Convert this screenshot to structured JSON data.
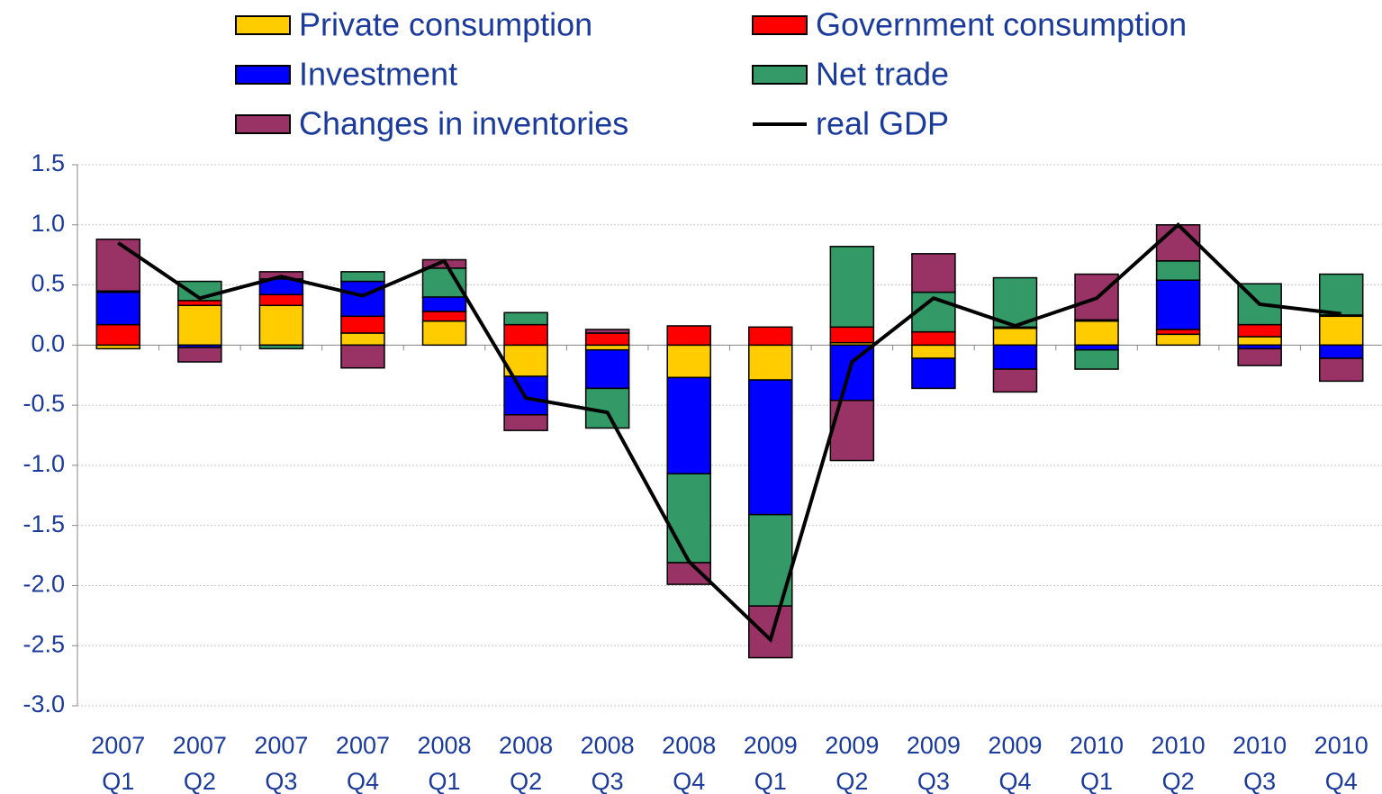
{
  "chart_data": {
    "type": "bar",
    "stacked": true,
    "categories": [
      [
        "2007",
        "Q1"
      ],
      [
        "2007",
        "Q2"
      ],
      [
        "2007",
        "Q3"
      ],
      [
        "2007",
        "Q4"
      ],
      [
        "2008",
        "Q1"
      ],
      [
        "2008",
        "Q2"
      ],
      [
        "2008",
        "Q3"
      ],
      [
        "2008",
        "Q4"
      ],
      [
        "2009",
        "Q1"
      ],
      [
        "2009",
        "Q2"
      ],
      [
        "2009",
        "Q3"
      ],
      [
        "2009",
        "Q4"
      ],
      [
        "2010",
        "Q1"
      ],
      [
        "2010",
        "Q2"
      ],
      [
        "2010",
        "Q3"
      ],
      [
        "2010",
        "Q4"
      ]
    ],
    "series": [
      {
        "name": "Private consumption",
        "color": "#ffcc00",
        "values": [
          -0.03,
          0.33,
          0.33,
          0.1,
          0.2,
          -0.26,
          -0.04,
          -0.27,
          -0.29,
          0.02,
          -0.11,
          0.14,
          0.2,
          0.09,
          0.07,
          0.24
        ]
      },
      {
        "name": "Government consumption",
        "color": "#ff0000",
        "values": [
          0.17,
          0.04,
          0.09,
          0.14,
          0.08,
          0.17,
          0.1,
          0.16,
          0.15,
          0.13,
          0.11,
          0.01,
          0.01,
          0.04,
          0.1,
          0.01
        ]
      },
      {
        "name": "Investment",
        "color": "#0000ff",
        "values": [
          0.27,
          -0.02,
          0.13,
          0.29,
          0.12,
          -0.32,
          -0.32,
          -0.8,
          -1.12,
          -0.46,
          -0.25,
          -0.2,
          -0.04,
          0.41,
          -0.03,
          -0.11
        ]
      },
      {
        "name": "Net trade",
        "color": "#339966",
        "values": [
          0.01,
          0.16,
          -0.03,
          0.08,
          0.24,
          0.1,
          -0.33,
          -0.74,
          -0.76,
          0.67,
          0.33,
          0.41,
          -0.16,
          0.16,
          0.34,
          0.34
        ]
      },
      {
        "name": "Changes in inventories",
        "color": "#993366",
        "values": [
          0.43,
          -0.12,
          0.06,
          -0.19,
          0.07,
          -0.13,
          0.03,
          -0.18,
          -0.43,
          -0.5,
          0.32,
          -0.19,
          0.38,
          0.3,
          -0.14,
          -0.19
        ]
      },
      {
        "name": "real GDP",
        "color": "#000000",
        "type": "line",
        "values": [
          0.85,
          0.39,
          0.57,
          0.41,
          0.7,
          -0.44,
          -0.56,
          -1.8,
          -2.45,
          -0.14,
          0.39,
          0.16,
          0.39,
          1.0,
          0.34,
          0.26
        ]
      }
    ],
    "ylim": [
      -3.0,
      1.5
    ],
    "yticks": [
      {
        "value": -3.0,
        "label": "-3.0"
      },
      -2.5,
      {
        "value": -2.0,
        "label": "-2.0"
      },
      -1.5,
      {
        "value": -1.0,
        "label": "-1.0"
      },
      -0.5,
      {
        "value": 0,
        "label": "0.0"
      },
      0.5,
      {
        "value": 1.0,
        "label": "1.0"
      },
      1.5
    ],
    "grid": true
  }
}
